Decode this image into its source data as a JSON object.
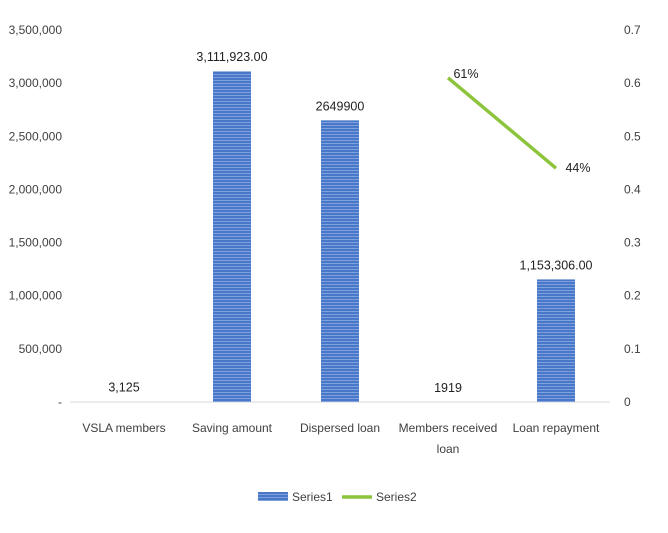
{
  "chart_data": {
    "type": "bar",
    "categories": [
      "VSLA members",
      "Saving amount",
      "Dispersed loan",
      "Members received loan",
      "Loan repayment"
    ],
    "category_label_lines": [
      [
        "VSLA members"
      ],
      [
        "Saving amount"
      ],
      [
        "Dispersed loan"
      ],
      [
        "Members received",
        "loan"
      ],
      [
        "Loan repayment"
      ]
    ],
    "series": [
      {
        "name": "Series1",
        "type": "bar",
        "axis": "left",
        "color": "#4472c4",
        "values": [
          3125,
          3111923,
          2649900,
          1919,
          1153306
        ],
        "data_labels": [
          "3,125",
          "3,111,923.00",
          "2649900",
          "1919",
          "1,153,306.00"
        ]
      },
      {
        "name": "Series2",
        "type": "line",
        "axis": "right",
        "color": "#8cc43c",
        "values": [
          null,
          null,
          null,
          0.61,
          0.44
        ],
        "data_labels": [
          "",
          "",
          "",
          "61%",
          "44%"
        ]
      }
    ],
    "y_left": {
      "range": [
        0,
        3500000
      ],
      "ticks": [
        0,
        500000,
        1000000,
        1500000,
        2000000,
        2500000,
        3000000,
        3500000
      ],
      "tick_labels": [
        "-",
        "500,000",
        "1,000,000",
        "1,500,000",
        "2,000,000",
        "2,500,000",
        "3,000,000",
        "3,500,000"
      ]
    },
    "y_right": {
      "range": [
        0,
        0.7
      ],
      "ticks": [
        0,
        0.1,
        0.2,
        0.3,
        0.4,
        0.5,
        0.6,
        0.7
      ],
      "tick_labels": [
        "0",
        "0.1",
        "0.2",
        "0.3",
        "0.4",
        "0.5",
        "0.6",
        "0.7"
      ]
    },
    "grid": false,
    "legend": {
      "position": "bottom",
      "entries": [
        "Series1",
        "Series2"
      ]
    }
  }
}
